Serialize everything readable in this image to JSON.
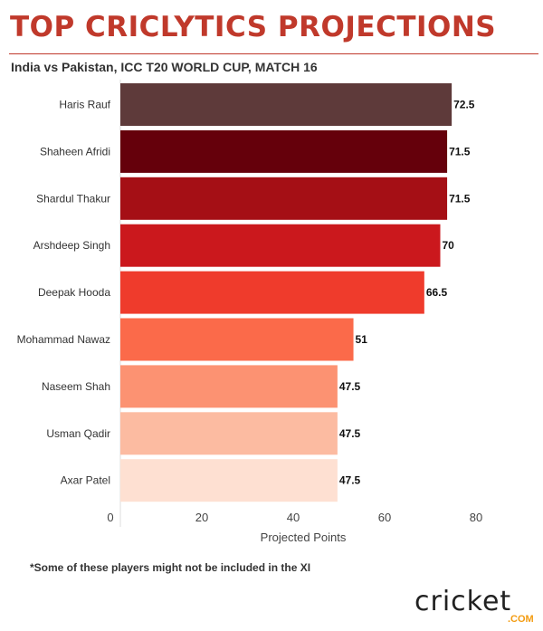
{
  "title": "TOP CRICLYTICS PROJECTIONS",
  "subtitle": "India vs Pakistan, ICC T20 WORLD CUP, MATCH 16",
  "footnote": "*Some of these players might not be included in the XI",
  "logo": {
    "text": "cricket",
    "suffix": ".COM"
  },
  "chart_data": {
    "type": "bar",
    "orientation": "horizontal",
    "categories": [
      "Haris Rauf",
      "Shaheen Afridi",
      "Shardul Thakur",
      "Arshdeep Singh",
      "Deepak Hooda",
      "Mohammad Nawaz",
      "Naseem Shah",
      "Usman Qadir",
      "Axar Patel"
    ],
    "values": [
      72.5,
      71.5,
      71.5,
      70,
      66.5,
      51,
      47.5,
      47.5,
      47.5
    ],
    "value_labels": [
      "72.5",
      "71.5",
      "71.5",
      "70",
      "66.5",
      "51",
      "47.5",
      "47.5",
      "47.5"
    ],
    "colors": [
      "#5e3a3a",
      "#65000b",
      "#a50f15",
      "#cb181d",
      "#ef3b2c",
      "#fb6a4a",
      "#fc9272",
      "#fcbba1",
      "#fee0d2"
    ],
    "xlabel": "Projected Points",
    "xticks": [
      0,
      20,
      40,
      60,
      80
    ],
    "xlim": [
      0,
      80
    ],
    "grid": false
  }
}
